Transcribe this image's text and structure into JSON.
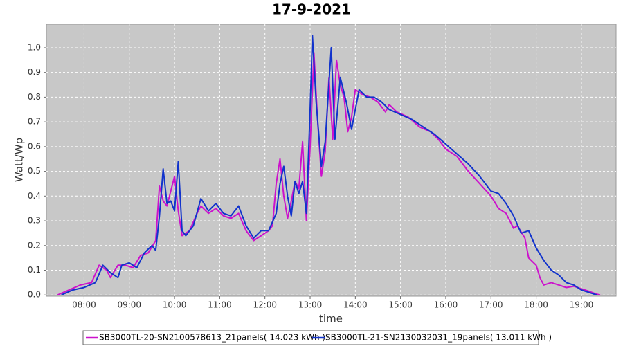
{
  "chart_data": {
    "type": "line",
    "title": "17-9-2021",
    "x_label": "time",
    "y_label": "Watt/Wp",
    "xlim": [
      "07:10",
      "19:46"
    ],
    "xticks": [
      "08:00",
      "09:00",
      "10:00",
      "11:00",
      "12:00",
      "13:00",
      "14:00",
      "15:00",
      "16:00",
      "17:00",
      "18:00",
      "19:00"
    ],
    "ylim": [
      -0.005,
      1.095
    ],
    "yticks": [
      {
        "value": 0,
        "label": "0.0"
      },
      0.1,
      0.2,
      0.3,
      0.4,
      0.5,
      0.6,
      0.7,
      0.8,
      0.9,
      {
        "value": 1,
        "label": "1.0"
      }
    ],
    "grid": true,
    "legend": "bottom",
    "series": [
      {
        "name": "SB3000TL-20-SN2100578613_21panels( 14.023 kWh )",
        "color": "#cc11cc",
        "x": [
          "07:25",
          "07:40",
          "07:55",
          "08:10",
          "08:20",
          "08:30",
          "08:35",
          "08:45",
          "08:55",
          "09:05",
          "09:15",
          "09:25",
          "09:35",
          "09:40",
          "09:45",
          "09:50",
          "09:55",
          "10:00",
          "10:05",
          "10:10",
          "10:20",
          "10:30",
          "10:35",
          "10:45",
          "10:55",
          "11:05",
          "11:15",
          "11:25",
          "11:35",
          "11:45",
          "11:55",
          "12:05",
          "12:10",
          "12:15",
          "12:20",
          "12:25",
          "12:30",
          "12:35",
          "12:40",
          "12:45",
          "12:50",
          "12:55",
          "13:00",
          "13:05",
          "13:10",
          "13:15",
          "13:20",
          "13:25",
          "13:30",
          "13:35",
          "13:40",
          "13:45",
          "13:50",
          "13:55",
          "14:00",
          "14:10",
          "14:20",
          "14:30",
          "14:40",
          "14:45",
          "14:55",
          "15:10",
          "15:25",
          "15:40",
          "15:50",
          "16:00",
          "16:15",
          "16:30",
          "16:45",
          "17:00",
          "17:10",
          "17:20",
          "17:30",
          "17:35",
          "17:45",
          "17:50",
          "18:00",
          "18:05",
          "18:10",
          "18:20",
          "18:30",
          "18:40",
          "18:50",
          "19:00",
          "19:10",
          "19:20",
          "19:25"
        ],
        "values": [
          0,
          0.02,
          0.04,
          0.05,
          0.12,
          0.1,
          0.07,
          0.12,
          0.12,
          0.11,
          0.16,
          0.17,
          0.22,
          0.44,
          0.38,
          0.36,
          0.42,
          0.48,
          0.34,
          0.24,
          0.26,
          0.33,
          0.36,
          0.33,
          0.35,
          0.32,
          0.31,
          0.33,
          0.26,
          0.22,
          0.24,
          0.26,
          0.28,
          0.45,
          0.55,
          0.4,
          0.31,
          0.38,
          0.46,
          0.43,
          0.62,
          0.3,
          0.6,
          0.98,
          0.7,
          0.48,
          0.58,
          0.88,
          0.63,
          0.95,
          0.85,
          0.8,
          0.66,
          0.72,
          0.83,
          0.81,
          0.8,
          0.78,
          0.74,
          0.77,
          0.74,
          0.72,
          0.68,
          0.66,
          0.63,
          0.59,
          0.56,
          0.5,
          0.45,
          0.4,
          0.35,
          0.33,
          0.27,
          0.28,
          0.23,
          0.15,
          0.12,
          0.07,
          0.04,
          0.05,
          0.04,
          0.03,
          0.035,
          0.025,
          0.015,
          0.003,
          0
        ]
      },
      {
        "name": "SB3000TL-21-SN2130032031_19panels( 13.011 kWh )",
        "color": "#1133cc",
        "x": [
          "07:30",
          "07:45",
          "08:00",
          "08:15",
          "08:25",
          "08:35",
          "08:45",
          "08:50",
          "09:00",
          "09:10",
          "09:20",
          "09:30",
          "09:35",
          "09:40",
          "09:45",
          "09:50",
          "09:55",
          "10:00",
          "10:05",
          "10:10",
          "10:15",
          "10:25",
          "10:35",
          "10:45",
          "10:55",
          "11:05",
          "11:15",
          "11:25",
          "11:35",
          "11:45",
          "11:55",
          "12:05",
          "12:15",
          "12:20",
          "12:25",
          "12:30",
          "12:35",
          "12:40",
          "12:45",
          "12:50",
          "12:55",
          "13:00",
          "13:03",
          "13:08",
          "13:15",
          "13:20",
          "13:28",
          "13:33",
          "13:40",
          "13:48",
          "13:55",
          "14:05",
          "14:15",
          "14:25",
          "14:35",
          "14:45",
          "15:00",
          "15:15",
          "15:30",
          "15:45",
          "16:00",
          "16:15",
          "16:30",
          "16:45",
          "17:00",
          "17:10",
          "17:20",
          "17:30",
          "17:40",
          "17:50",
          "18:00",
          "18:10",
          "18:20",
          "18:30",
          "18:40",
          "18:50",
          "19:00",
          "19:10",
          "19:20"
        ],
        "values": [
          0,
          0.02,
          0.03,
          0.05,
          0.12,
          0.09,
          0.07,
          0.12,
          0.13,
          0.11,
          0.17,
          0.2,
          0.18,
          0.32,
          0.51,
          0.37,
          0.38,
          0.34,
          0.54,
          0.26,
          0.24,
          0.28,
          0.39,
          0.34,
          0.37,
          0.33,
          0.32,
          0.36,
          0.28,
          0.23,
          0.26,
          0.26,
          0.33,
          0.45,
          0.52,
          0.4,
          0.32,
          0.46,
          0.41,
          0.46,
          0.33,
          0.75,
          1.05,
          0.78,
          0.52,
          0.62,
          1,
          0.63,
          0.88,
          0.78,
          0.67,
          0.83,
          0.8,
          0.8,
          0.78,
          0.75,
          0.73,
          0.71,
          0.68,
          0.65,
          0.61,
          0.57,
          0.53,
          0.48,
          0.42,
          0.41,
          0.37,
          0.32,
          0.25,
          0.26,
          0.19,
          0.14,
          0.1,
          0.08,
          0.05,
          0.04,
          0.02,
          0.01,
          0
        ]
      }
    ]
  }
}
